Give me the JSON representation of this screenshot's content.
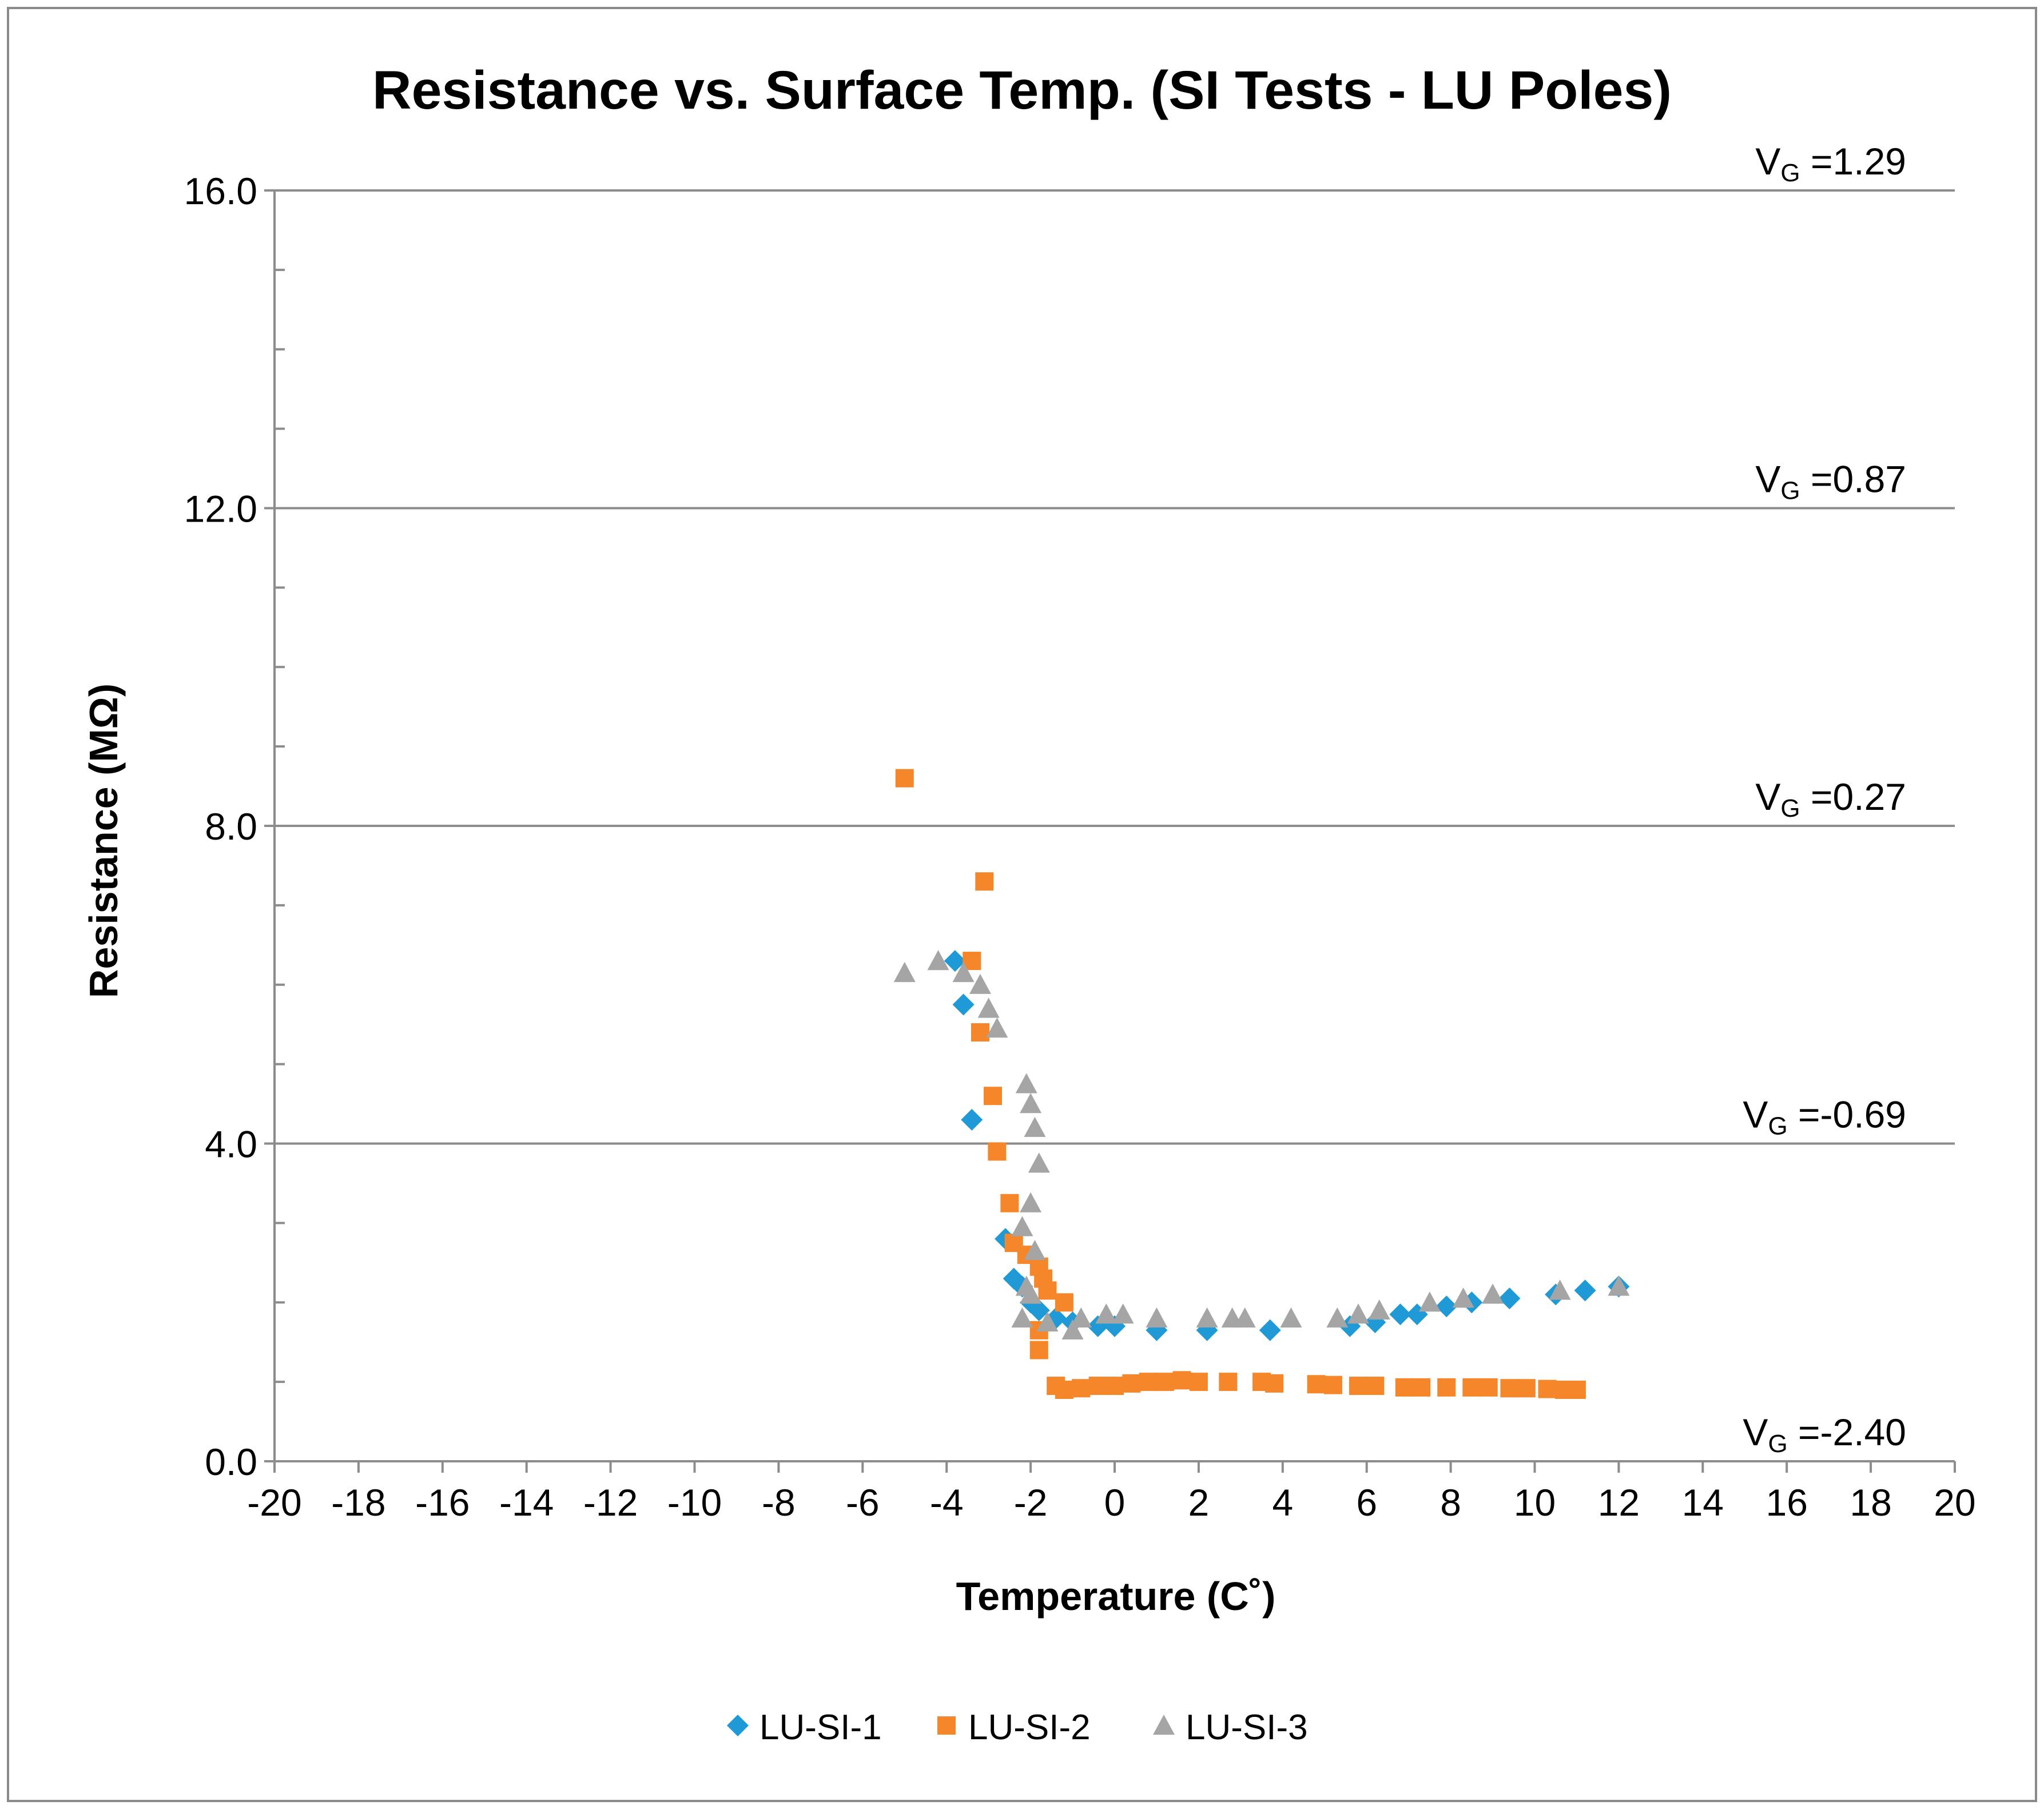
{
  "chart_data": {
    "type": "scatter",
    "title": "Resistance vs. Surface Temp. (SI Tests - LU Poles)",
    "xlabel": "Temperature (C˚)",
    "ylabel": "Resistance (MΩ)",
    "xlim": [
      -20,
      20
    ],
    "ylim": [
      0,
      16
    ],
    "x_ticks": [
      -20,
      -18,
      -16,
      -14,
      -12,
      -10,
      -8,
      -6,
      -4,
      -2,
      0,
      2,
      4,
      6,
      8,
      10,
      12,
      14,
      16,
      18,
      20
    ],
    "x_tick_labels": [
      "-20",
      "-18",
      "-16",
      "-14",
      "-12",
      "-10",
      "-8",
      "-6",
      "-4",
      "-2",
      "0",
      "2",
      "4",
      "6",
      "8",
      "10",
      "12",
      "14",
      "16",
      "18",
      "20"
    ],
    "y_ticks": [
      0,
      4,
      8,
      12,
      16
    ],
    "y_tick_labels": [
      "0.0",
      "4.0",
      "8.0",
      "12.0",
      "16.0"
    ],
    "y_minor_step": 1,
    "gridlines_y": [
      4,
      8,
      12,
      16
    ],
    "legend_position": "bottom",
    "vg_annotations": [
      {
        "y": 16,
        "prefix": "V",
        "sub": "G",
        "text": " =1.29"
      },
      {
        "y": 12,
        "prefix": "V",
        "sub": "G",
        "text": " =0.87"
      },
      {
        "y": 8,
        "prefix": "V",
        "sub": "G",
        "text": " =0.27"
      },
      {
        "y": 4,
        "prefix": "V",
        "sub": "G",
        "text": " =-0.69"
      },
      {
        "y": 0,
        "prefix": "V",
        "sub": "G",
        "text": " =-2.40"
      }
    ],
    "series": [
      {
        "name": "LU-SI-1",
        "marker": "diamond",
        "color": "#1F9AD6",
        "points": [
          [
            -3.8,
            6.3
          ],
          [
            -3.6,
            5.75
          ],
          [
            -3.4,
            4.3
          ],
          [
            -2.6,
            2.8
          ],
          [
            -2.4,
            2.3
          ],
          [
            -2.2,
            2.2
          ],
          [
            -2.0,
            2.0
          ],
          [
            -1.8,
            1.9
          ],
          [
            -1.4,
            1.8
          ],
          [
            -1.0,
            1.75
          ],
          [
            -0.4,
            1.7
          ],
          [
            0.0,
            1.7
          ],
          [
            1.0,
            1.65
          ],
          [
            2.2,
            1.65
          ],
          [
            3.7,
            1.65
          ],
          [
            5.6,
            1.7
          ],
          [
            6.2,
            1.75
          ],
          [
            6.8,
            1.85
          ],
          [
            7.2,
            1.85
          ],
          [
            7.9,
            1.95
          ],
          [
            8.5,
            2.0
          ],
          [
            9.4,
            2.05
          ],
          [
            10.5,
            2.1
          ],
          [
            11.2,
            2.15
          ],
          [
            12.0,
            2.2
          ]
        ]
      },
      {
        "name": "LU-SI-2",
        "marker": "square",
        "color": "#F5862A",
        "points": [
          [
            -5.0,
            8.6
          ],
          [
            -3.4,
            6.3
          ],
          [
            -3.1,
            7.3
          ],
          [
            -3.2,
            5.4
          ],
          [
            -2.9,
            4.6
          ],
          [
            -2.8,
            3.9
          ],
          [
            -2.5,
            3.25
          ],
          [
            -2.4,
            2.75
          ],
          [
            -2.1,
            2.6
          ],
          [
            -1.8,
            2.45
          ],
          [
            -1.7,
            2.3
          ],
          [
            -1.6,
            2.15
          ],
          [
            -1.2,
            2.0
          ],
          [
            -1.8,
            1.65
          ],
          [
            -1.8,
            1.4
          ],
          [
            -1.4,
            0.95
          ],
          [
            -1.2,
            0.9
          ],
          [
            -0.8,
            0.92
          ],
          [
            -0.4,
            0.95
          ],
          [
            0.0,
            0.95
          ],
          [
            0.4,
            0.98
          ],
          [
            0.8,
            1.0
          ],
          [
            1.2,
            1.0
          ],
          [
            1.6,
            1.02
          ],
          [
            2.0,
            1.0
          ],
          [
            2.7,
            1.0
          ],
          [
            3.5,
            1.0
          ],
          [
            3.8,
            0.98
          ],
          [
            4.8,
            0.97
          ],
          [
            5.2,
            0.96
          ],
          [
            5.8,
            0.95
          ],
          [
            6.2,
            0.95
          ],
          [
            6.9,
            0.93
          ],
          [
            7.3,
            0.93
          ],
          [
            7.9,
            0.93
          ],
          [
            8.5,
            0.93
          ],
          [
            8.9,
            0.93
          ],
          [
            9.4,
            0.92
          ],
          [
            9.8,
            0.92
          ],
          [
            10.3,
            0.91
          ],
          [
            10.7,
            0.9
          ],
          [
            11.0,
            0.9
          ]
        ]
      },
      {
        "name": "LU-SI-3",
        "marker": "triangle",
        "color": "#A5A5A5",
        "points": [
          [
            -5.0,
            6.15
          ],
          [
            -4.2,
            6.3
          ],
          [
            -3.6,
            6.15
          ],
          [
            -3.2,
            6.0
          ],
          [
            -3.0,
            5.7
          ],
          [
            -2.8,
            5.45
          ],
          [
            -2.1,
            4.75
          ],
          [
            -2.0,
            4.5
          ],
          [
            -1.9,
            4.2
          ],
          [
            -1.8,
            3.75
          ],
          [
            -2.0,
            3.25
          ],
          [
            -2.2,
            2.95
          ],
          [
            -1.9,
            2.65
          ],
          [
            -2.1,
            2.2
          ],
          [
            -2.0,
            2.1
          ],
          [
            -2.2,
            1.8
          ],
          [
            -1.6,
            1.75
          ],
          [
            -1.0,
            1.65
          ],
          [
            -0.8,
            1.8
          ],
          [
            -0.2,
            1.85
          ],
          [
            0.2,
            1.85
          ],
          [
            1.0,
            1.8
          ],
          [
            2.2,
            1.8
          ],
          [
            2.8,
            1.8
          ],
          [
            3.1,
            1.8
          ],
          [
            4.2,
            1.8
          ],
          [
            5.3,
            1.8
          ],
          [
            5.8,
            1.85
          ],
          [
            6.3,
            1.9
          ],
          [
            7.5,
            2.0
          ],
          [
            8.3,
            2.05
          ],
          [
            9.0,
            2.1
          ],
          [
            10.6,
            2.15
          ],
          [
            12.0,
            2.2
          ]
        ]
      }
    ]
  }
}
